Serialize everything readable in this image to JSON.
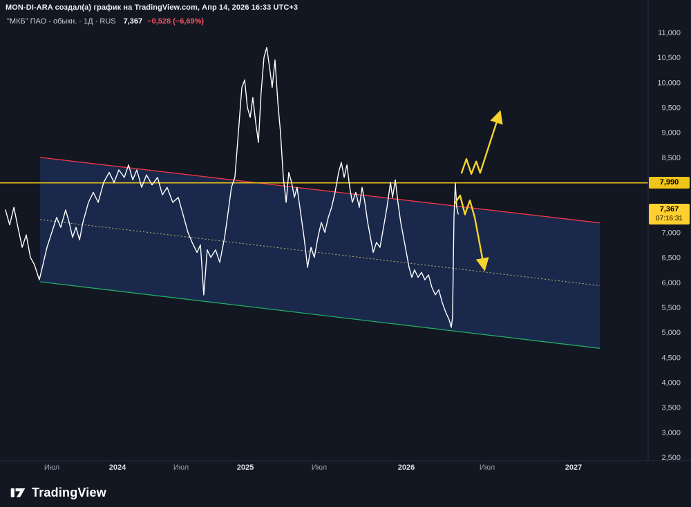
{
  "attribution": {
    "line": "MON-DI-ARA создал(а) график на TradingView.com, Апр 14, 2026 16:33 UTC+3"
  },
  "symbol": {
    "title": "\"МКБ\" ПАО - обыкн. · 1Д · RUS",
    "last_price": "7,367",
    "change": "−0,528 (−6,69%)"
  },
  "footer": {
    "brand": "TradingView"
  },
  "chart_data": {
    "type": "line",
    "title": "",
    "xlabel": "",
    "ylabel": "",
    "grid": false,
    "legend": "none",
    "y_axis": {
      "min": 2500,
      "max": 11000,
      "step": 500,
      "format": "comma-decimal (e.g. 7,990)"
    },
    "x_ticks": [
      {
        "t": 2023.5,
        "label": "Июл"
      },
      {
        "t": 2024.0,
        "label": "2024"
      },
      {
        "t": 2024.5,
        "label": "Июл"
      },
      {
        "t": 2025.0,
        "label": "2025"
      },
      {
        "t": 2025.5,
        "label": "Июл"
      },
      {
        "t": 2026.0,
        "label": "2026"
      },
      {
        "t": 2026.5,
        "label": "Июл"
      },
      {
        "t": 2027.0,
        "label": "2027"
      }
    ],
    "series": [
      {
        "name": "МКБ цена закрытия",
        "color": "#ffffff",
        "points": [
          [
            2023.147,
            7450
          ],
          [
            2023.179,
            7150
          ],
          [
            2023.211,
            7500
          ],
          [
            2023.242,
            7100
          ],
          [
            2023.274,
            6700
          ],
          [
            2023.305,
            6950
          ],
          [
            2023.337,
            6500
          ],
          [
            2023.368,
            6350
          ],
          [
            2023.405,
            6050
          ],
          [
            2023.432,
            6350
          ],
          [
            2023.463,
            6700
          ],
          [
            2023.5,
            7000
          ],
          [
            2023.537,
            7300
          ],
          [
            2023.568,
            7100
          ],
          [
            2023.605,
            7450
          ],
          [
            2023.632,
            7200
          ],
          [
            2023.658,
            6900
          ],
          [
            2023.684,
            7100
          ],
          [
            2023.711,
            6850
          ],
          [
            2023.737,
            7200
          ],
          [
            2023.779,
            7600
          ],
          [
            2023.816,
            7800
          ],
          [
            2023.853,
            7600
          ],
          [
            2023.895,
            8000
          ],
          [
            2023.937,
            8200
          ],
          [
            2023.974,
            8000
          ],
          [
            2024.011,
            8250
          ],
          [
            2024.054,
            8100
          ],
          [
            2024.087,
            8350
          ],
          [
            2024.12,
            8050
          ],
          [
            2024.152,
            8250
          ],
          [
            2024.19,
            7900
          ],
          [
            2024.228,
            8150
          ],
          [
            2024.272,
            7950
          ],
          [
            2024.315,
            8100
          ],
          [
            2024.353,
            7750
          ],
          [
            2024.391,
            7900
          ],
          [
            2024.435,
            7600
          ],
          [
            2024.478,
            7700
          ],
          [
            2024.516,
            7350
          ],
          [
            2024.554,
            7000
          ],
          [
            2024.586,
            6800
          ],
          [
            2024.624,
            6600
          ],
          [
            2024.651,
            6750
          ],
          [
            2024.677,
            5750
          ],
          [
            2024.704,
            6650
          ],
          [
            2024.731,
            6500
          ],
          [
            2024.769,
            6650
          ],
          [
            2024.801,
            6400
          ],
          [
            2024.839,
            6900
          ],
          [
            2024.866,
            7400
          ],
          [
            2024.892,
            7900
          ],
          [
            2024.919,
            8100
          ],
          [
            2024.946,
            9000
          ],
          [
            2024.973,
            9900
          ],
          [
            2024.995,
            10050
          ],
          [
            2025.014,
            9500
          ],
          [
            2025.033,
            9300
          ],
          [
            2025.051,
            9700
          ],
          [
            2025.07,
            9200
          ],
          [
            2025.089,
            8800
          ],
          [
            2025.107,
            9800
          ],
          [
            2025.126,
            10500
          ],
          [
            2025.145,
            10700
          ],
          [
            2025.164,
            10300
          ],
          [
            2025.182,
            9900
          ],
          [
            2025.201,
            10450
          ],
          [
            2025.22,
            9600
          ],
          [
            2025.238,
            9000
          ],
          [
            2025.257,
            8100
          ],
          [
            2025.276,
            7600
          ],
          [
            2025.294,
            8200
          ],
          [
            2025.313,
            8000
          ],
          [
            2025.332,
            7700
          ],
          [
            2025.35,
            7900
          ],
          [
            2025.374,
            7400
          ],
          [
            2025.397,
            6900
          ],
          [
            2025.421,
            6300
          ],
          [
            2025.444,
            6700
          ],
          [
            2025.467,
            6500
          ],
          [
            2025.491,
            6900
          ],
          [
            2025.512,
            7200
          ],
          [
            2025.532,
            7000
          ],
          [
            2025.552,
            7300
          ],
          [
            2025.571,
            7500
          ],
          [
            2025.591,
            7800
          ],
          [
            2025.611,
            8200
          ],
          [
            2025.627,
            8400
          ],
          [
            2025.643,
            8100
          ],
          [
            2025.659,
            8350
          ],
          [
            2025.675,
            7900
          ],
          [
            2025.69,
            7600
          ],
          [
            2025.71,
            7800
          ],
          [
            2025.73,
            7500
          ],
          [
            2025.746,
            7900
          ],
          [
            2025.762,
            7600
          ],
          [
            2025.778,
            7200
          ],
          [
            2025.794,
            6900
          ],
          [
            2025.81,
            6600
          ],
          [
            2025.829,
            6800
          ],
          [
            2025.849,
            6700
          ],
          [
            2025.869,
            7100
          ],
          [
            2025.889,
            7500
          ],
          [
            2025.909,
            8000
          ],
          [
            2025.921,
            7700
          ],
          [
            2025.937,
            8050
          ],
          [
            2025.952,
            7600
          ],
          [
            2025.968,
            7200
          ],
          [
            2025.984,
            6900
          ],
          [
            2026.0,
            6600
          ],
          [
            2026.017,
            6300
          ],
          [
            2026.034,
            6100
          ],
          [
            2026.051,
            6250
          ],
          [
            2026.073,
            6100
          ],
          [
            2026.094,
            6200
          ],
          [
            2026.115,
            6050
          ],
          [
            2026.137,
            6150
          ],
          [
            2026.158,
            5900
          ],
          [
            2026.179,
            5750
          ],
          [
            2026.201,
            5850
          ],
          [
            2026.222,
            5600
          ],
          [
            2026.244,
            5400
          ],
          [
            2026.265,
            5250
          ],
          [
            2026.278,
            5100
          ],
          [
            2026.286,
            5300
          ],
          [
            2026.295,
            7300
          ],
          [
            2026.303,
            7990
          ],
          [
            2026.312,
            7500
          ],
          [
            2026.321,
            7367
          ]
        ]
      }
    ],
    "horizontal_line": {
      "price": 7990,
      "label": "7,990",
      "color": "#f0c419"
    },
    "last_price_label": {
      "price": 7367,
      "label": "7,367",
      "countdown": "07:16:31",
      "color": "#ffd02e"
    },
    "channel": {
      "fill": "rgba(42,82,173,0.30)",
      "middle_color": "#cbbd6a",
      "top": {
        "from": [
          2023.411,
          8500
        ],
        "to": [
          2027.152,
          7190
        ],
        "color": "#f23645"
      },
      "bottom": {
        "from": [
          2023.411,
          6010
        ],
        "to": [
          2027.152,
          4680
        ],
        "color": "#22ab67"
      }
    },
    "arrows": [
      {
        "name": "bullish-scenario-arrow",
        "color": "#f6d32d",
        "points": [
          [
            2026.342,
            8190
          ],
          [
            2026.372,
            8470
          ],
          [
            2026.402,
            8170
          ],
          [
            2026.432,
            8420
          ],
          [
            2026.457,
            8190
          ],
          [
            2026.573,
            9400
          ]
        ]
      },
      {
        "name": "bearish-scenario-arrow",
        "color": "#f6d32d",
        "points": [
          [
            2026.299,
            7570
          ],
          [
            2026.333,
            7740
          ],
          [
            2026.363,
            7360
          ],
          [
            2026.393,
            7640
          ],
          [
            2026.423,
            7300
          ],
          [
            2026.483,
            6270
          ]
        ]
      }
    ]
  }
}
